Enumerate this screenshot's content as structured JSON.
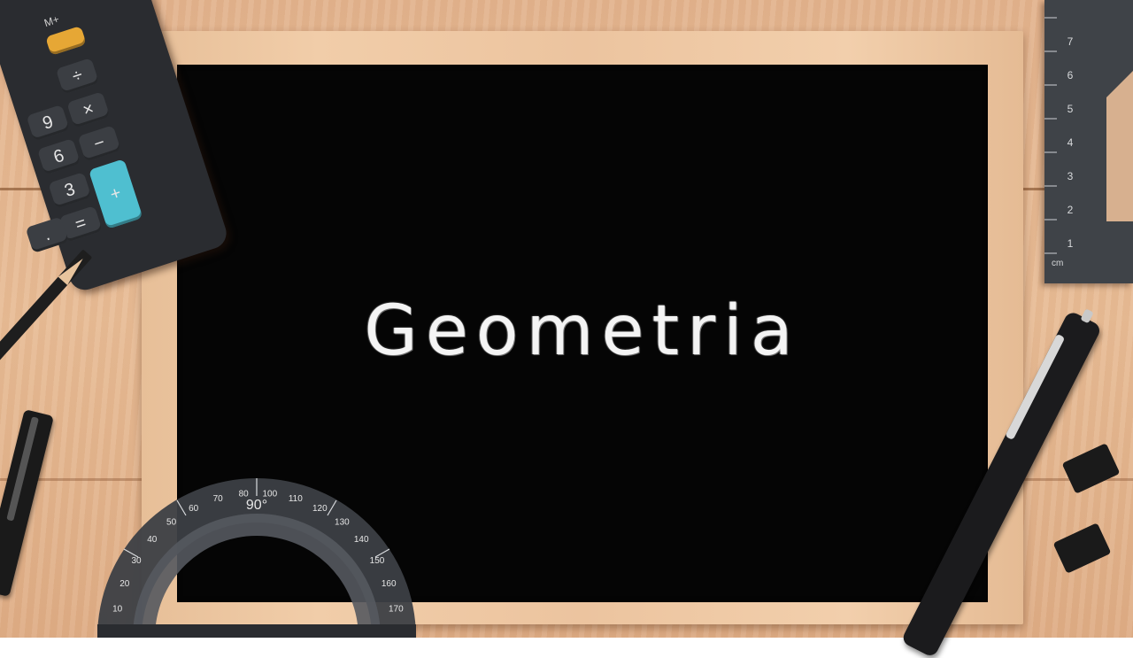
{
  "board": {
    "title": "Geometria"
  },
  "calculator": {
    "mplus_label": "M+",
    "keys": [
      "÷",
      "×",
      "−",
      "9",
      "6",
      "3",
      "=",
      "+",
      "."
    ]
  },
  "ruler": {
    "ticks": [
      "7",
      "6",
      "5",
      "4",
      "3",
      "2",
      "1",
      "cm"
    ]
  },
  "protractor": {
    "top_label": "90°",
    "scale": [
      "10",
      "20",
      "30",
      "40",
      "50",
      "60",
      "70",
      "80",
      "100",
      "110",
      "120",
      "130",
      "140",
      "150",
      "160",
      "170"
    ]
  },
  "colors": {
    "board": "#050505",
    "chalk": "#f4f4f4",
    "frame": "#ecc49f",
    "desk": "#e3b48f",
    "calc_plus_key": "#4fbfd0"
  }
}
